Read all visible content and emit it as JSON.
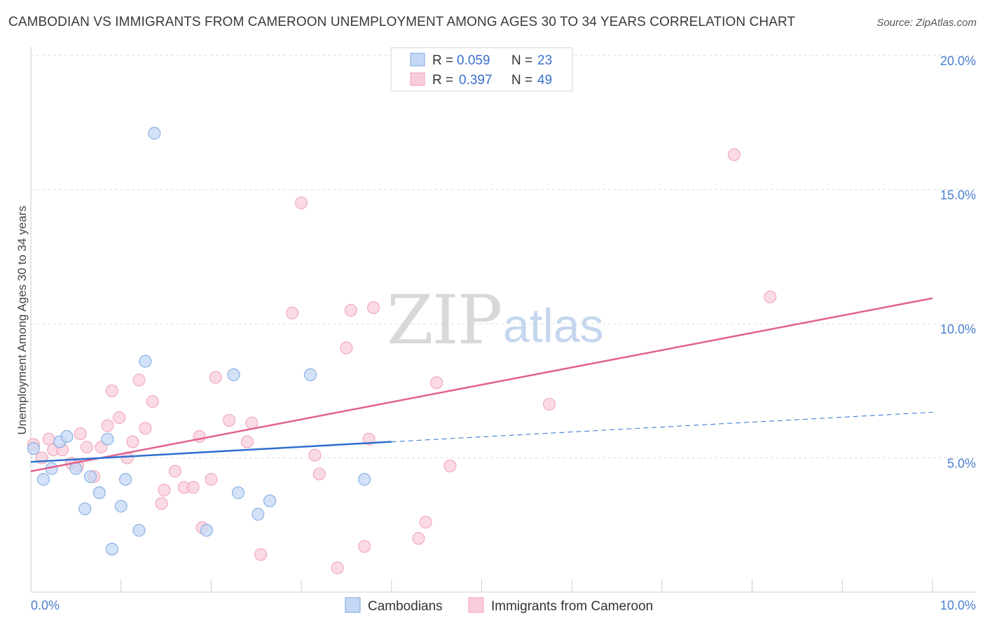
{
  "title": "CAMBODIAN VS IMMIGRANTS FROM CAMEROON UNEMPLOYMENT AMONG AGES 30 TO 34 YEARS CORRELATION CHART",
  "source": "Source: ZipAtlas.com",
  "watermark": {
    "zip": "ZIP",
    "atlas": "atlas"
  },
  "chart_data": {
    "type": "scatter",
    "xlabel": "",
    "ylabel": "Unemployment Among Ages 30 to 34 years",
    "xlim": [
      0,
      10
    ],
    "ylim": [
      0,
      20
    ],
    "x_tick_labels": [
      "0.0%",
      "10.0%"
    ],
    "y_ticks": [
      5,
      10,
      15,
      20
    ],
    "y_tick_labels": [
      "5.0%",
      "10.0%",
      "15.0%",
      "20.0%"
    ],
    "grid": true,
    "legend": {
      "placement": "top-center",
      "rows": [
        {
          "r_label": "R =",
          "r_value": "0.059",
          "n_label": "N =",
          "n_value": "23"
        },
        {
          "r_label": "R =",
          "r_value": "0.397",
          "n_label": "N =",
          "n_value": "49"
        }
      ]
    },
    "series": [
      {
        "name": "Cambodians",
        "color": "#7aa7e0",
        "fill": "#c4d8f5",
        "line_color": "#2d6fcf",
        "trend": {
          "x0": 0.0,
          "y0": 4.85,
          "x1": 4.0,
          "y1": 5.6,
          "x_dash_end": 10.0,
          "y_dash_end": 6.7
        },
        "points": [
          [
            0.03,
            5.35
          ],
          [
            0.14,
            4.2
          ],
          [
            0.23,
            4.6
          ],
          [
            0.32,
            5.6
          ],
          [
            0.4,
            5.8
          ],
          [
            0.5,
            4.6
          ],
          [
            0.6,
            3.1
          ],
          [
            0.66,
            4.3
          ],
          [
            0.76,
            3.7
          ],
          [
            0.85,
            5.7
          ],
          [
            0.9,
            1.6
          ],
          [
            1.0,
            3.2
          ],
          [
            1.05,
            4.2
          ],
          [
            1.2,
            2.3
          ],
          [
            1.27,
            8.6
          ],
          [
            1.37,
            17.1
          ],
          [
            1.95,
            2.3
          ],
          [
            2.25,
            8.1
          ],
          [
            2.3,
            3.7
          ],
          [
            2.52,
            2.9
          ],
          [
            2.65,
            3.4
          ],
          [
            3.1,
            8.1
          ],
          [
            3.7,
            4.2
          ]
        ]
      },
      {
        "name": "Immigrants from Cameroon",
        "color": "#f0a0b8",
        "fill": "#f8cdd9",
        "line_color": "#e0628e",
        "trend": {
          "x0": 0.0,
          "y0": 4.5,
          "x1": 10.0,
          "y1": 10.95
        },
        "points": [
          [
            0.03,
            5.5
          ],
          [
            0.12,
            5.0
          ],
          [
            0.2,
            5.7
          ],
          [
            0.25,
            5.3
          ],
          [
            0.35,
            5.3
          ],
          [
            0.45,
            4.8
          ],
          [
            0.52,
            4.7
          ],
          [
            0.55,
            5.9
          ],
          [
            0.62,
            5.4
          ],
          [
            0.7,
            4.3
          ],
          [
            0.78,
            5.4
          ],
          [
            0.85,
            6.2
          ],
          [
            0.9,
            7.5
          ],
          [
            0.98,
            6.5
          ],
          [
            1.07,
            5.0
          ],
          [
            1.13,
            5.6
          ],
          [
            1.2,
            7.9
          ],
          [
            1.27,
            6.1
          ],
          [
            1.35,
            7.1
          ],
          [
            1.45,
            3.3
          ],
          [
            1.48,
            3.8
          ],
          [
            1.6,
            4.5
          ],
          [
            1.7,
            3.9
          ],
          [
            1.8,
            3.9
          ],
          [
            1.87,
            5.8
          ],
          [
            1.9,
            2.4
          ],
          [
            2.0,
            4.2
          ],
          [
            2.05,
            8.0
          ],
          [
            2.2,
            6.4
          ],
          [
            2.4,
            5.6
          ],
          [
            2.45,
            6.3
          ],
          [
            2.55,
            1.4
          ],
          [
            2.9,
            10.4
          ],
          [
            3.0,
            14.5
          ],
          [
            3.15,
            5.1
          ],
          [
            3.2,
            4.4
          ],
          [
            3.4,
            0.9
          ],
          [
            3.5,
            9.1
          ],
          [
            3.55,
            10.5
          ],
          [
            3.7,
            1.7
          ],
          [
            3.75,
            5.7
          ],
          [
            3.8,
            10.6
          ],
          [
            4.3,
            2.0
          ],
          [
            4.38,
            2.6
          ],
          [
            4.5,
            7.8
          ],
          [
            4.65,
            4.7
          ],
          [
            5.75,
            7.0
          ],
          [
            7.8,
            16.3
          ],
          [
            8.2,
            11.0
          ]
        ]
      }
    ]
  }
}
